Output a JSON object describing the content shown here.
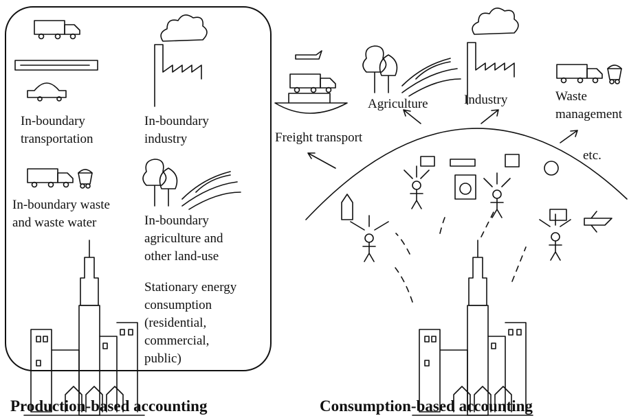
{
  "production": {
    "title": "Production-based accounting",
    "labels": [
      {
        "lines": [
          "In-boundary",
          "transportation"
        ]
      },
      {
        "lines": [
          "In-boundary",
          "industry"
        ]
      },
      {
        "lines": [
          "In-boundary waste",
          "and waste water"
        ]
      },
      {
        "lines": [
          "In-boundary",
          "agriculture and",
          "other land-use"
        ]
      },
      {
        "lines": [
          "Stationary energy",
          "consumption",
          "(residential,",
          "commercial,",
          "public)"
        ]
      }
    ]
  },
  "consumption": {
    "title": "Consumption-based accounting",
    "labels": [
      {
        "lines": [
          "Freight transport"
        ]
      },
      {
        "lines": [
          "Agriculture"
        ]
      },
      {
        "lines": [
          "Industry"
        ]
      },
      {
        "lines": [
          "Waste",
          "management"
        ]
      },
      {
        "lines": [
          "etc."
        ]
      }
    ]
  }
}
